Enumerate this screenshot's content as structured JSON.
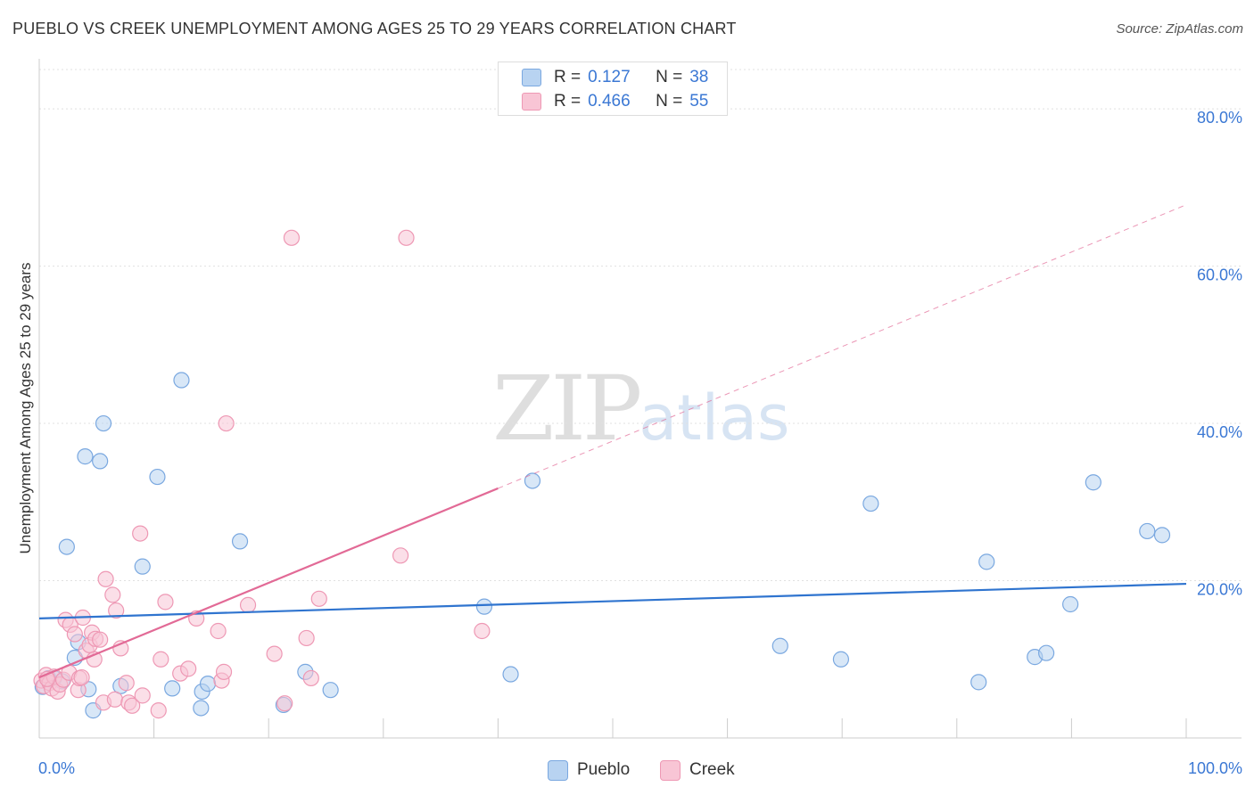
{
  "title": "PUEBLO VS CREEK UNEMPLOYMENT AMONG AGES 25 TO 29 YEARS CORRELATION CHART",
  "source": "Source: ZipAtlas.com",
  "watermark": {
    "zip": "ZIP",
    "atlas": "atlas"
  },
  "legend": {
    "rows": [
      {
        "r_label": "R =",
        "r_value": "0.127",
        "n_label": "N =",
        "n_value": "38"
      },
      {
        "r_label": "R =",
        "r_value": "0.466",
        "n_label": "N =",
        "n_value": "55"
      }
    ]
  },
  "colors": {
    "pueblo_fill": "#b8d3f1",
    "pueblo_stroke": "#7aa8e0",
    "pueblo_line": "#2f74cf",
    "creek_fill": "#f8c5d5",
    "creek_stroke": "#ee98b4",
    "creek_line": "#e26a96",
    "grid": "#e0e0e0",
    "axis_text": "#3b78d4"
  },
  "chart_data": {
    "type": "scatter",
    "title": "PUEBLO VS CREEK UNEMPLOYMENT AMONG AGES 25 TO 29 YEARS CORRELATION CHART",
    "xlabel": "",
    "ylabel": "Unemployment Among Ages 25 to 29 years",
    "xlim": [
      0,
      100
    ],
    "ylim": [
      0,
      85
    ],
    "x_tick_labels": [
      "0.0%",
      "100.0%"
    ],
    "y_ticks": [
      20,
      40,
      60,
      80
    ],
    "y_tick_labels": [
      "20.0%",
      "40.0%",
      "60.0%",
      "80.0%"
    ],
    "legend_position": "top-center",
    "series": [
      {
        "name": "Pueblo",
        "r": 0.127,
        "n": 38,
        "trend": {
          "x0": 0,
          "y0": 15.2,
          "x1": 100,
          "y1": 19.6,
          "solid_to": 100
        },
        "points": [
          {
            "x": 0.3,
            "y": 6.5
          },
          {
            "x": 0.8,
            "y": 7.6
          },
          {
            "x": 1.3,
            "y": 7.6
          },
          {
            "x": 2.0,
            "y": 7.2
          },
          {
            "x": 2.4,
            "y": 24.3
          },
          {
            "x": 3.1,
            "y": 10.2
          },
          {
            "x": 3.4,
            "y": 12.2
          },
          {
            "x": 4.0,
            "y": 35.8
          },
          {
            "x": 4.3,
            "y": 6.2
          },
          {
            "x": 4.7,
            "y": 3.5
          },
          {
            "x": 5.3,
            "y": 35.2
          },
          {
            "x": 5.6,
            "y": 40.0
          },
          {
            "x": 7.1,
            "y": 6.6
          },
          {
            "x": 9.0,
            "y": 21.8
          },
          {
            "x": 10.3,
            "y": 33.2
          },
          {
            "x": 11.6,
            "y": 6.3
          },
          {
            "x": 12.4,
            "y": 45.5
          },
          {
            "x": 14.1,
            "y": 3.8
          },
          {
            "x": 14.2,
            "y": 5.9
          },
          {
            "x": 14.7,
            "y": 6.9
          },
          {
            "x": 17.5,
            "y": 25.0
          },
          {
            "x": 21.3,
            "y": 4.2
          },
          {
            "x": 23.2,
            "y": 8.4
          },
          {
            "x": 25.4,
            "y": 6.1
          },
          {
            "x": 38.8,
            "y": 16.7
          },
          {
            "x": 41.1,
            "y": 8.1
          },
          {
            "x": 43.0,
            "y": 32.7
          },
          {
            "x": 64.6,
            "y": 11.7
          },
          {
            "x": 69.9,
            "y": 10.0
          },
          {
            "x": 72.5,
            "y": 29.8
          },
          {
            "x": 81.9,
            "y": 7.1
          },
          {
            "x": 82.6,
            "y": 22.4
          },
          {
            "x": 86.8,
            "y": 10.3
          },
          {
            "x": 87.8,
            "y": 10.8
          },
          {
            "x": 89.9,
            "y": 17.0
          },
          {
            "x": 91.9,
            "y": 32.5
          },
          {
            "x": 96.6,
            "y": 26.3
          },
          {
            "x": 97.9,
            "y": 25.8
          }
        ]
      },
      {
        "name": "Creek",
        "r": 0.466,
        "n": 55,
        "trend": {
          "x0": 0,
          "y0": 7.7,
          "x1": 100,
          "y1": 67.8,
          "solid_to": 40
        },
        "points": [
          {
            "x": 0.2,
            "y": 7.3
          },
          {
            "x": 0.4,
            "y": 6.6
          },
          {
            "x": 0.6,
            "y": 8.0
          },
          {
            "x": 0.9,
            "y": 7.0
          },
          {
            "x": 1.1,
            "y": 6.3
          },
          {
            "x": 1.3,
            "y": 7.8
          },
          {
            "x": 1.6,
            "y": 5.9
          },
          {
            "x": 1.8,
            "y": 6.8
          },
          {
            "x": 2.1,
            "y": 7.4
          },
          {
            "x": 2.3,
            "y": 15.0
          },
          {
            "x": 2.6,
            "y": 8.3
          },
          {
            "x": 2.7,
            "y": 14.4
          },
          {
            "x": 3.1,
            "y": 13.2
          },
          {
            "x": 3.4,
            "y": 6.1
          },
          {
            "x": 3.5,
            "y": 7.6
          },
          {
            "x": 3.7,
            "y": 7.7
          },
          {
            "x": 3.8,
            "y": 15.3
          },
          {
            "x": 4.1,
            "y": 11.1
          },
          {
            "x": 4.4,
            "y": 11.8
          },
          {
            "x": 4.6,
            "y": 13.4
          },
          {
            "x": 4.8,
            "y": 10.0
          },
          {
            "x": 4.9,
            "y": 12.6
          },
          {
            "x": 5.3,
            "y": 12.5
          },
          {
            "x": 5.6,
            "y": 4.5
          },
          {
            "x": 5.8,
            "y": 20.2
          },
          {
            "x": 6.4,
            "y": 18.2
          },
          {
            "x": 6.6,
            "y": 4.9
          },
          {
            "x": 6.7,
            "y": 16.2
          },
          {
            "x": 7.1,
            "y": 11.4
          },
          {
            "x": 7.6,
            "y": 7.0
          },
          {
            "x": 7.8,
            "y": 4.5
          },
          {
            "x": 8.1,
            "y": 4.1
          },
          {
            "x": 8.8,
            "y": 26.0
          },
          {
            "x": 9.0,
            "y": 5.4
          },
          {
            "x": 10.4,
            "y": 3.5
          },
          {
            "x": 10.6,
            "y": 10.0
          },
          {
            "x": 11.0,
            "y": 17.3
          },
          {
            "x": 12.3,
            "y": 8.2
          },
          {
            "x": 13.0,
            "y": 8.8
          },
          {
            "x": 13.7,
            "y": 15.2
          },
          {
            "x": 15.6,
            "y": 13.6
          },
          {
            "x": 15.9,
            "y": 7.3
          },
          {
            "x": 16.1,
            "y": 8.4
          },
          {
            "x": 16.3,
            "y": 40.0
          },
          {
            "x": 18.2,
            "y": 16.9
          },
          {
            "x": 20.5,
            "y": 10.7
          },
          {
            "x": 21.4,
            "y": 4.4
          },
          {
            "x": 22.0,
            "y": 63.6
          },
          {
            "x": 23.3,
            "y": 12.7
          },
          {
            "x": 23.7,
            "y": 7.6
          },
          {
            "x": 24.4,
            "y": 17.7
          },
          {
            "x": 31.5,
            "y": 23.2
          },
          {
            "x": 32.0,
            "y": 63.6
          },
          {
            "x": 38.6,
            "y": 13.6
          },
          {
            "x": 0.7,
            "y": 7.5
          }
        ]
      }
    ]
  }
}
